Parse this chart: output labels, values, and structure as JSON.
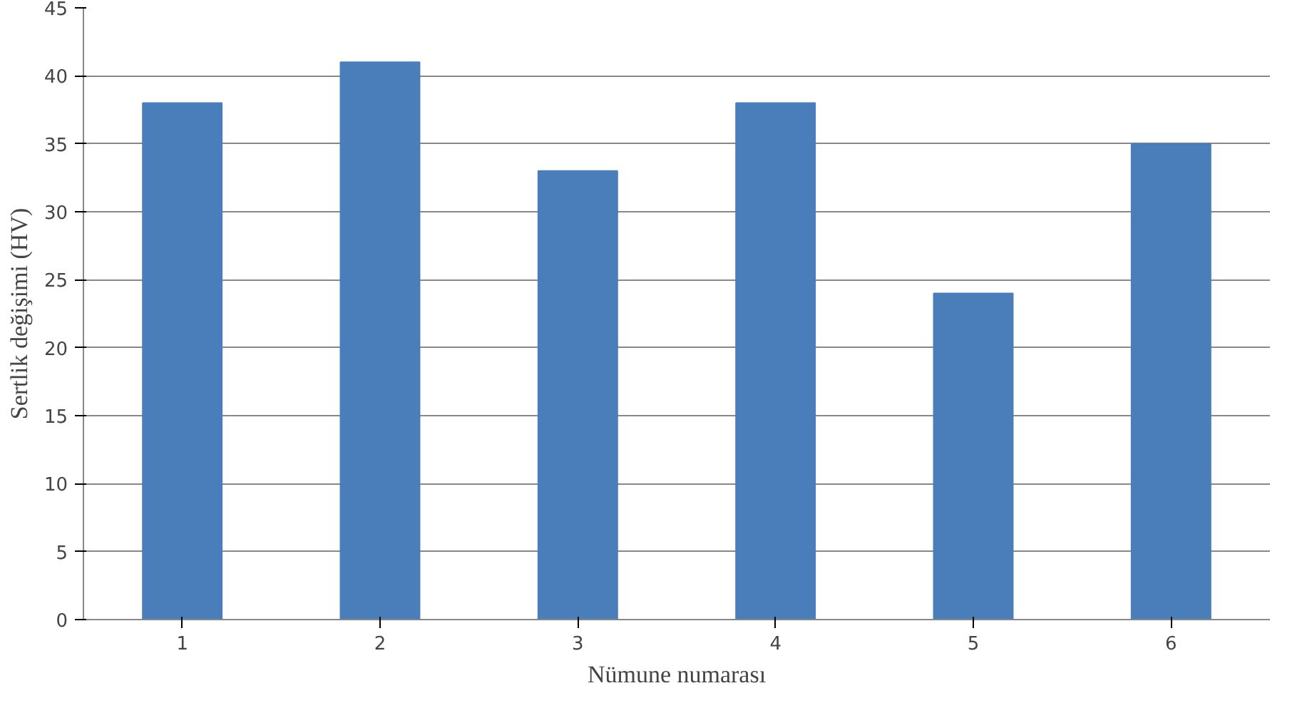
{
  "chart_data": {
    "type": "bar",
    "xlabel": "Nümune numarası",
    "ylabel": "Sertlik değişimi (HV)",
    "categories": [
      "1",
      "2",
      "3",
      "4",
      "5",
      "6"
    ],
    "values": [
      38,
      41,
      33,
      38,
      24,
      35
    ],
    "color": "#4a7ebb",
    "ylim": [
      0,
      45
    ],
    "yticks": [
      0,
      5,
      10,
      15,
      20,
      25,
      30,
      35,
      40,
      45
    ],
    "grid": "y"
  }
}
